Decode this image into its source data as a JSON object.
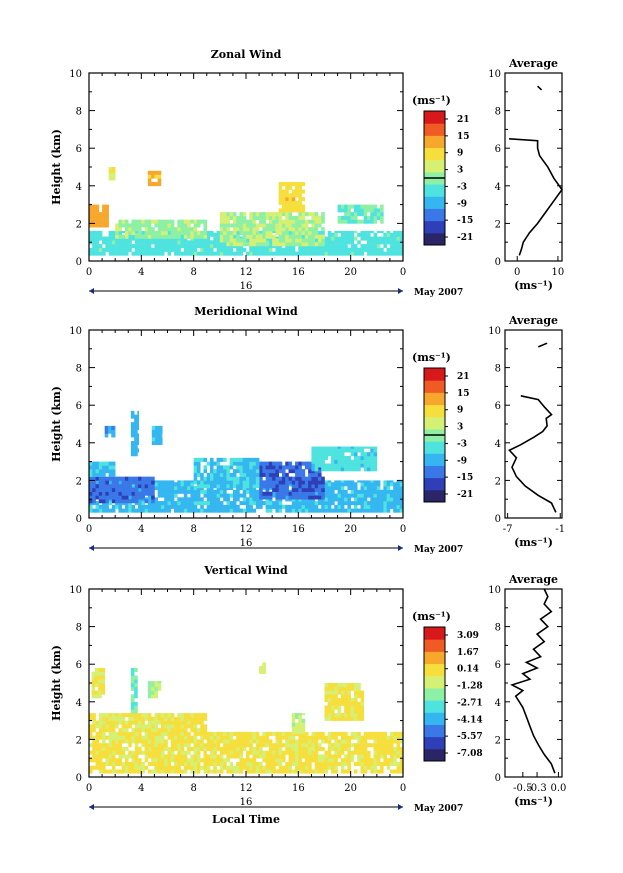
{
  "figure": {
    "date_label": "May 2007",
    "day_label": "16",
    "xlabel": "Local Time",
    "ylabel": "Height (km)",
    "unit_label": "(ms⁻¹)",
    "avg_title": "Average",
    "avg_xlabel": "(ms⁻¹)"
  },
  "colors": {
    "scale": [
      "#2a2566",
      "#2f3fb8",
      "#3a78e8",
      "#35b6f0",
      "#4fe3df",
      "#8ef0a4",
      "#d6f074",
      "#f6df3c",
      "#f7a82c",
      "#f05a24",
      "#d7191c"
    ]
  },
  "chart_data": [
    {
      "type": "heatmap",
      "title": "Zonal Wind",
      "x_ticks": [
        "0",
        "4",
        "8",
        "12",
        "16",
        "20",
        "0"
      ],
      "y_ticks": [
        "0",
        "2",
        "4",
        "6",
        "8",
        "10"
      ],
      "xlim": [
        0,
        24
      ],
      "ylim": [
        0,
        10
      ],
      "colorbar_ticks": [
        "21",
        "15",
        "9",
        "3",
        "-3",
        "-9",
        "-15",
        "-21"
      ],
      "colorbar_range": [
        -24,
        24
      ],
      "colorbar_mark": 0,
      "regions": [
        {
          "t0": 0,
          "t1": 24,
          "h0": 0.3,
          "h1": 1.6,
          "v": -4
        },
        {
          "t0": 10,
          "t1": 18,
          "h0": 0.8,
          "h1": 2.6,
          "v": 2
        },
        {
          "t0": 0,
          "t1": 1.5,
          "h0": 1.8,
          "h1": 3.0,
          "v": 13
        },
        {
          "t0": 2,
          "t1": 9,
          "h0": 1.2,
          "h1": 2.2,
          "v": 1
        },
        {
          "t0": 14.5,
          "t1": 16.5,
          "h0": 2.6,
          "h1": 4.2,
          "v": 9
        },
        {
          "t0": 19,
          "t1": 22.5,
          "h0": 2.0,
          "h1": 3.0,
          "v": -2
        },
        {
          "t0": 4.5,
          "t1": 5.5,
          "h0": 4.0,
          "h1": 4.8,
          "v": 12
        },
        {
          "t0": 1.5,
          "t1": 2.0,
          "h0": 4.3,
          "h1": 5.0,
          "v": 6
        }
      ],
      "avg": {
        "xlim": [
          -3,
          11
        ],
        "x_ticks": [
          "0",
          "10"
        ],
        "x_tick_vals": [
          0,
          10
        ],
        "profile": [
          [
            0.5,
            0.3
          ],
          [
            1,
            0.6
          ],
          [
            1.5,
            1.0
          ],
          [
            3,
            1.5
          ],
          [
            5,
            2.0
          ],
          [
            7,
            2.6
          ],
          [
            9,
            3.2
          ],
          [
            11,
            3.8
          ],
          [
            9,
            4.4
          ],
          [
            7.5,
            5.0
          ],
          [
            5.5,
            5.6
          ],
          [
            5,
            6.0
          ],
          [
            5,
            6.4
          ],
          [
            -2,
            6.5
          ]
        ],
        "fragment": [
          [
            5,
            9.3
          ],
          [
            6,
            9.1
          ]
        ]
      }
    },
    {
      "type": "heatmap",
      "title": "Meridional Wind",
      "x_ticks": [
        "0",
        "4",
        "8",
        "12",
        "16",
        "20",
        "0"
      ],
      "y_ticks": [
        "0",
        "2",
        "4",
        "6",
        "8",
        "10"
      ],
      "xlim": [
        0,
        24
      ],
      "ylim": [
        0,
        10
      ],
      "colorbar_ticks": [
        "21",
        "15",
        "9",
        "3",
        "-3",
        "-9",
        "-15",
        "-21"
      ],
      "colorbar_range": [
        -24,
        24
      ],
      "colorbar_mark": 0,
      "regions": [
        {
          "t0": 0,
          "t1": 24,
          "h0": 0.3,
          "h1": 2.0,
          "v": -8
        },
        {
          "t0": 0,
          "t1": 5,
          "h0": 0.8,
          "h1": 2.2,
          "v": -14
        },
        {
          "t0": 13,
          "t1": 18,
          "h0": 1.0,
          "h1": 3.0,
          "v": -15
        },
        {
          "t0": 8,
          "t1": 13,
          "h0": 1.6,
          "h1": 3.2,
          "v": -7
        },
        {
          "t0": 17,
          "t1": 22,
          "h0": 2.5,
          "h1": 3.8,
          "v": -5
        },
        {
          "t0": 0,
          "t1": 2,
          "h0": 2.2,
          "h1": 3.0,
          "v": -7
        },
        {
          "t0": 3.2,
          "t1": 3.8,
          "h0": 3.3,
          "h1": 5.7,
          "v": -9
        },
        {
          "t0": 1.2,
          "t1": 2.0,
          "h0": 4.3,
          "h1": 4.9,
          "v": -10
        },
        {
          "t0": 4.8,
          "t1": 5.6,
          "h0": 3.9,
          "h1": 4.9,
          "v": -7
        }
      ],
      "avg": {
        "xlim": [
          -7.3,
          -0.8
        ],
        "x_ticks": [
          "-7",
          "-1"
        ],
        "x_tick_vals": [
          -7,
          -1
        ],
        "profile": [
          [
            -1.5,
            0.3
          ],
          [
            -2,
            0.8
          ],
          [
            -3.5,
            1.2
          ],
          [
            -5,
            1.7
          ],
          [
            -6,
            2.2
          ],
          [
            -6.5,
            2.7
          ],
          [
            -6,
            3.2
          ],
          [
            -6.8,
            3.6
          ],
          [
            -5.5,
            3.9
          ],
          [
            -4,
            4.3
          ],
          [
            -3,
            4.6
          ],
          [
            -2.5,
            4.9
          ],
          [
            -2.6,
            5.3
          ],
          [
            -2,
            5.5
          ],
          [
            -2.8,
            5.9
          ],
          [
            -3.5,
            6.3
          ],
          [
            -5.5,
            6.5
          ]
        ],
        "fragment": [
          [
            -3.5,
            9.1
          ],
          [
            -2.5,
            9.3
          ]
        ]
      }
    },
    {
      "type": "heatmap",
      "title": "Vertical Wind",
      "x_ticks": [
        "0",
        "4",
        "8",
        "12",
        "16",
        "20",
        "0"
      ],
      "y_ticks": [
        "0",
        "2",
        "4",
        "6",
        "8",
        "10"
      ],
      "xlim": [
        0,
        24
      ],
      "ylim": [
        0,
        10
      ],
      "colorbar_ticks": [
        "3.09",
        "1.67",
        "0.14",
        "-1.28",
        "-2.71",
        "-4.14",
        "-5.57",
        "-7.08"
      ],
      "colorbar_range": [
        -7.8,
        3.8
      ],
      "colorbar_mark": null,
      "regions": [
        {
          "t0": 0,
          "t1": 24,
          "h0": 0.2,
          "h1": 2.4,
          "v": -0.2
        },
        {
          "t0": 0,
          "t1": 9,
          "h0": 2.4,
          "h1": 3.4,
          "v": -0.3
        },
        {
          "t0": 0.2,
          "t1": 1.2,
          "h0": 4.2,
          "h1": 5.8,
          "v": -0.4
        },
        {
          "t0": 3.2,
          "t1": 3.7,
          "h0": 3.4,
          "h1": 5.8,
          "v": -2.6
        },
        {
          "t0": 4.5,
          "t1": 5.5,
          "h0": 4.2,
          "h1": 5.1,
          "v": -1.4
        },
        {
          "t0": 13,
          "t1": 13.5,
          "h0": 5.5,
          "h1": 6.1,
          "v": -0.8
        },
        {
          "t0": 15.5,
          "t1": 16.5,
          "h0": 2.3,
          "h1": 3.4,
          "v": -1.3
        },
        {
          "t0": 18,
          "t1": 21,
          "h0": 3.0,
          "h1": 5.0,
          "v": -0.2
        }
      ],
      "avg": {
        "xlim": [
          -0.75,
          0.05
        ],
        "x_ticks": [
          "-0.5",
          "-0.3",
          "0.0"
        ],
        "x_tick_vals": [
          -0.5,
          -0.3,
          0.0
        ],
        "profile": [
          [
            -0.05,
            0.2
          ],
          [
            -0.1,
            0.7
          ],
          [
            -0.2,
            1.2
          ],
          [
            -0.28,
            1.7
          ],
          [
            -0.35,
            2.2
          ],
          [
            -0.4,
            2.7
          ],
          [
            -0.45,
            3.2
          ],
          [
            -0.5,
            3.7
          ],
          [
            -0.55,
            4.0
          ],
          [
            -0.6,
            4.3
          ],
          [
            -0.5,
            4.6
          ],
          [
            -0.65,
            4.9
          ],
          [
            -0.4,
            5.2
          ],
          [
            -0.5,
            5.5
          ],
          [
            -0.3,
            5.8
          ],
          [
            -0.45,
            6.1
          ],
          [
            -0.25,
            6.4
          ],
          [
            -0.35,
            6.8
          ],
          [
            -0.2,
            7.2
          ],
          [
            -0.3,
            7.6
          ],
          [
            -0.15,
            8.0
          ],
          [
            -0.25,
            8.4
          ],
          [
            -0.1,
            8.8
          ],
          [
            -0.2,
            9.2
          ],
          [
            -0.15,
            9.6
          ],
          [
            -0.2,
            10.0
          ]
        ],
        "fragment": []
      }
    }
  ]
}
